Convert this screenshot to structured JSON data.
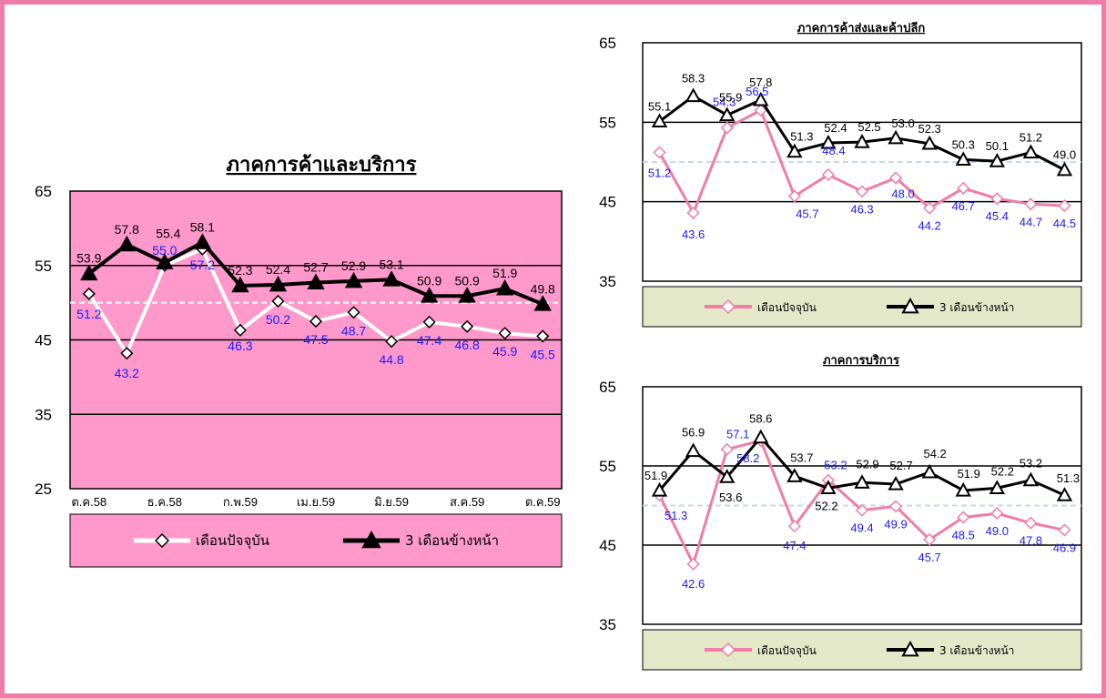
{
  "colors": {
    "frame": "#f07ca8",
    "main_plot_bg": "#ff99cc",
    "small_legend_bg": "#e2e8c8",
    "current_pink": "#f07ca8",
    "current_white": "#ffffff",
    "forward_black": "#000000",
    "label_blue": "#1a1aff",
    "label_black": "#000000"
  },
  "chart_data": [
    {
      "id": "trade-services",
      "type": "line",
      "title": "ภาคการค้าและบริการ",
      "ylim": [
        25,
        65
      ],
      "yticks": [
        "25",
        "35",
        "45",
        "55",
        "65"
      ],
      "x_tick_labels": [
        "ต.ค.58",
        "ธ.ค.58",
        "ก.พ.59",
        "เม.ย.59",
        "มิ.ย.59",
        "ส.ค.59",
        "ต.ค.59"
      ],
      "legend_position": "bottom",
      "grid": true,
      "series": [
        {
          "name": "เดือนปัจจุบัน",
          "marker": "diamond",
          "values": [
            51.2,
            43.2,
            55.0,
            57.2,
            46.3,
            50.2,
            47.5,
            48.7,
            44.8,
            47.4,
            46.8,
            45.9,
            45.5
          ],
          "labels": [
            "51.2",
            "43.2",
            "55.0",
            "57.2",
            "46.3",
            "50.2",
            "47.5",
            "48.7",
            "44.8",
            "47.4",
            "46.8",
            "45.9",
            "45.5"
          ]
        },
        {
          "name": "3 เดือนข้างหน้า",
          "marker": "triangle",
          "values": [
            53.9,
            57.8,
            55.4,
            58.1,
            52.3,
            52.4,
            52.7,
            52.9,
            53.1,
            50.9,
            50.9,
            51.9,
            49.8
          ],
          "labels": [
            "53.9",
            "57.8",
            "55.4",
            "58.1",
            "52.3",
            "52.4",
            "52.7",
            "52.9",
            "53.1",
            "50.9",
            "50.9",
            "51.9",
            "49.8"
          ]
        }
      ]
    },
    {
      "id": "wholesale-retail",
      "type": "line",
      "title": "ภาคการค้าส่งและค้าปลีก",
      "ylim": [
        35,
        65
      ],
      "yticks": [
        "35",
        "45",
        "55",
        "65"
      ],
      "legend_position": "bottom",
      "grid": true,
      "series": [
        {
          "name": "เดือนปัจจุบัน",
          "marker": "diamond",
          "values": [
            51.2,
            43.6,
            54.3,
            56.5,
            45.7,
            48.4,
            46.3,
            48.0,
            44.2,
            46.7,
            45.4,
            44.7,
            44.5
          ],
          "labels": [
            "51.2",
            "43.6",
            "54.3",
            "56.5",
            "45.7",
            "48.4",
            "46.3",
            "48.0",
            "44.2",
            "46.7",
            "45.4",
            "44.7",
            "44.5"
          ]
        },
        {
          "name": "3 เดือนข้างหน้า",
          "marker": "triangle",
          "values": [
            55.1,
            58.3,
            55.9,
            57.8,
            51.3,
            52.4,
            52.5,
            53.0,
            52.3,
            50.3,
            50.1,
            51.2,
            49.0
          ],
          "labels": [
            "55.1",
            "58.3",
            "55.9",
            "57.8",
            "51.3",
            "52.4",
            "52.5",
            "53.0",
            "52.3",
            "50.3",
            "50.1",
            "51.2",
            "49.0"
          ]
        }
      ]
    },
    {
      "id": "services",
      "type": "line",
      "title": "ภาคการบริการ",
      "ylim": [
        35,
        65
      ],
      "yticks": [
        "35",
        "45",
        "55",
        "65"
      ],
      "legend_position": "bottom",
      "grid": true,
      "series": [
        {
          "name": "เดือนปัจจุบัน",
          "marker": "diamond",
          "values": [
            51.3,
            42.6,
            57.1,
            58.2,
            47.4,
            53.2,
            49.4,
            49.9,
            45.7,
            48.5,
            49.0,
            47.8,
            46.9
          ],
          "labels": [
            "51.3",
            "42.6",
            "57.1",
            "58.2",
            "47.4",
            "53.2",
            "49.4",
            "49.9",
            "45.7",
            "48.5",
            "49.0",
            "47.8",
            "46.9"
          ]
        },
        {
          "name": "3 เดือนข้างหน้า",
          "marker": "triangle",
          "values": [
            51.9,
            56.9,
            53.6,
            58.6,
            53.7,
            52.2,
            52.9,
            52.7,
            54.2,
            51.9,
            52.2,
            53.2,
            51.3
          ],
          "labels": [
            "51.9",
            "56.9",
            "53.6",
            "58.6",
            "53.7",
            "52.2",
            "52.9",
            "52.7",
            "54.2",
            "51.9",
            "52.2",
            "53.2",
            "51.3"
          ]
        }
      ]
    }
  ]
}
